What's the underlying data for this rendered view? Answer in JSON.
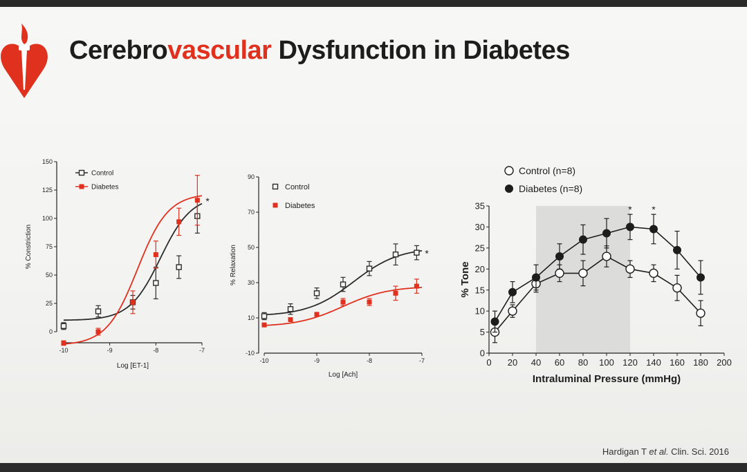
{
  "slide": {
    "title_part1": "Cerebro",
    "title_part2": "vascular",
    "title_part3": " Dysfunction in Diabetes",
    "citation_author": "Hardigan T ",
    "citation_etal": "et al.",
    "citation_rest": " Clin. Sci. 2016",
    "accent_color": "#e0301e",
    "logo_icon": "heart-torch-icon"
  },
  "chart_data": [
    {
      "type": "line",
      "xlabel": "Log [ET-1]",
      "ylabel": "% Constriction",
      "xlim": [
        -10,
        -7
      ],
      "ylim": [
        0,
        150
      ],
      "xticks": [
        -10,
        -9,
        -8,
        -7
      ],
      "yticks": [
        0,
        25,
        50,
        75,
        100,
        125,
        150
      ],
      "legend_position": "top-left",
      "annotation": "*",
      "series": [
        {
          "name": "Control",
          "marker": "open-square",
          "color": "#2b2b2b",
          "x": [
            -10,
            -9.25,
            -8.5,
            -8.0,
            -7.5,
            -7.1
          ],
          "y": [
            5,
            18,
            26,
            43,
            57,
            102
          ],
          "err": [
            3,
            5,
            6,
            14,
            10,
            15
          ],
          "fit": {
            "bottom": 10,
            "top": 120,
            "logec50": -7.9,
            "hill": 1.3
          }
        },
        {
          "name": "Diabetes",
          "marker": "filled-square",
          "color": "#e0301e",
          "x": [
            -10,
            -9.25,
            -8.5,
            -8.0,
            -7.5,
            -7.1
          ],
          "y": [
            -10,
            0,
            26,
            68,
            97,
            116
          ],
          "err": [
            2,
            3,
            10,
            12,
            12,
            22
          ],
          "fit": {
            "bottom": -12,
            "top": 122,
            "logec50": -8.4,
            "hill": 1.3
          }
        }
      ]
    },
    {
      "type": "line",
      "xlabel": "Log [Ach]",
      "ylabel": "% Relaxation",
      "xlim": [
        -10,
        -7
      ],
      "ylim": [
        -10,
        90
      ],
      "xticks": [
        -10,
        -9,
        -8,
        -7
      ],
      "yticks": [
        -10,
        10,
        30,
        50,
        70,
        90
      ],
      "legend_position": "top-left",
      "annotation": "*",
      "series": [
        {
          "name": "Control",
          "marker": "open-square",
          "color": "#2b2b2b",
          "x": [
            -10,
            -9.5,
            -9.0,
            -8.5,
            -8.0,
            -7.5,
            -7.1
          ],
          "y": [
            11,
            15,
            24,
            29,
            38,
            46,
            47
          ],
          "err": [
            2,
            3,
            3,
            4,
            4,
            6,
            4
          ],
          "fit": {
            "bottom": 11,
            "top": 50,
            "logec50": -8.3,
            "hill": 1.0
          }
        },
        {
          "name": "Diabetes",
          "marker": "filled-square",
          "color": "#e0301e",
          "x": [
            -10,
            -9.5,
            -9.0,
            -8.5,
            -8.0,
            -7.5,
            -7.1
          ],
          "y": [
            6,
            9,
            12,
            19,
            19,
            24,
            28
          ],
          "err": [
            1,
            1,
            1,
            2,
            2,
            4,
            4
          ],
          "fit": {
            "bottom": 5,
            "top": 28,
            "logec50": -8.5,
            "hill": 1.0
          }
        }
      ]
    },
    {
      "type": "line",
      "xlabel": "Intraluminal Pressure (mmHg)",
      "ylabel": "% Tone",
      "xlim": [
        0,
        200
      ],
      "ylim": [
        0,
        35
      ],
      "xticks": [
        0,
        20,
        40,
        60,
        80,
        100,
        120,
        140,
        160,
        180,
        200
      ],
      "yticks": [
        0,
        5,
        10,
        15,
        20,
        25,
        30,
        35
      ],
      "legend_position": "top-left",
      "shaded_region": [
        40,
        120
      ],
      "annotations": [
        {
          "x": 120,
          "text": "*"
        },
        {
          "x": 140,
          "text": "*"
        }
      ],
      "series": [
        {
          "name": "Control (n=8)",
          "marker": "open-circle",
          "color": "#1d1d1d",
          "x": [
            5,
            20,
            40,
            60,
            80,
            100,
            120,
            140,
            160,
            180
          ],
          "y": [
            5,
            10,
            16.5,
            19,
            19,
            23,
            20,
            19,
            15.5,
            9.5
          ],
          "err": [
            2.5,
            1.5,
            2,
            2,
            3,
            2.5,
            2,
            2,
            3,
            3
          ]
        },
        {
          "name": "Diabetes (n=8)",
          "marker": "filled-circle",
          "color": "#1d1d1d",
          "x": [
            5,
            20,
            40,
            60,
            80,
            100,
            120,
            140,
            160,
            180
          ],
          "y": [
            7.5,
            14.5,
            18,
            23,
            27,
            28.5,
            30,
            29.5,
            24.5,
            18
          ],
          "err": [
            2.5,
            2.5,
            3,
            3,
            3.5,
            3.5,
            3,
            3.5,
            4.5,
            4
          ]
        }
      ]
    }
  ]
}
